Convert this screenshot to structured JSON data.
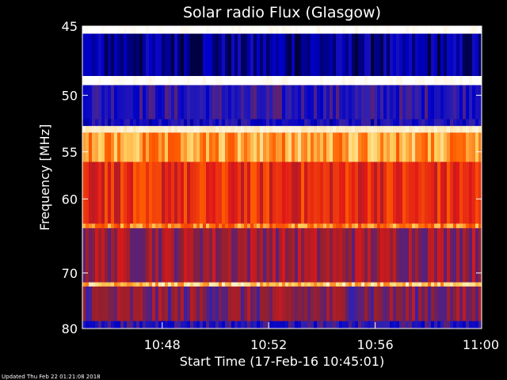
{
  "chart_data": {
    "type": "heatmap",
    "title": "Solar radio Flux (Glasgow)",
    "xlabel": "Start Time (17-Feb-16 10:45:01)",
    "ylabel": "Frequency [MHz]",
    "x_range_minutes": [
      0,
      15
    ],
    "xticks": [
      {
        "label": "10:48",
        "minute": 3
      },
      {
        "label": "10:52",
        "minute": 7
      },
      {
        "label": "10:56",
        "minute": 11
      },
      {
        "label": "11:00",
        "minute": 15
      }
    ],
    "yticks": [
      {
        "label": "45",
        "mhz": 45
      },
      {
        "label": "50",
        "mhz": 50
      },
      {
        "label": "55",
        "mhz": 55
      },
      {
        "label": "60",
        "mhz": 60
      },
      {
        "label": "70",
        "mhz": 70
      },
      {
        "label": "80",
        "mhz": 80
      }
    ],
    "ylim": [
      45,
      80
    ],
    "y_scale": "reciprocal",
    "colormap": [
      "#000033",
      "#0000c8",
      "#3020b0",
      "#902030",
      "#e01818",
      "#ff6000",
      "#ffd060",
      "#ffffff"
    ],
    "frequency_bands": [
      {
        "from": 45,
        "to": 45.5,
        "level": 1.0
      },
      {
        "from": 45.5,
        "to": 48.5,
        "level": 0.1
      },
      {
        "from": 48.5,
        "to": 49.2,
        "level": 1.0
      },
      {
        "from": 49.2,
        "to": 52.0,
        "level": 0.25
      },
      {
        "from": 52.0,
        "to": 52.6,
        "level": 0.2
      },
      {
        "from": 52.6,
        "to": 53.2,
        "level": 0.95
      },
      {
        "from": 53.2,
        "to": 56.0,
        "level": 0.8
      },
      {
        "from": 56.0,
        "to": 63.0,
        "level": 0.6
      },
      {
        "from": 63.0,
        "to": 63.6,
        "level": 0.75
      },
      {
        "from": 63.6,
        "to": 71.5,
        "level": 0.45
      },
      {
        "from": 71.5,
        "to": 72.2,
        "level": 0.85
      },
      {
        "from": 72.2,
        "to": 78.5,
        "level": 0.4
      },
      {
        "from": 78.5,
        "to": 80,
        "level": 0.25
      }
    ]
  },
  "footer": {
    "updated": "Updated Thu Feb 22 01:21:08 2018"
  }
}
